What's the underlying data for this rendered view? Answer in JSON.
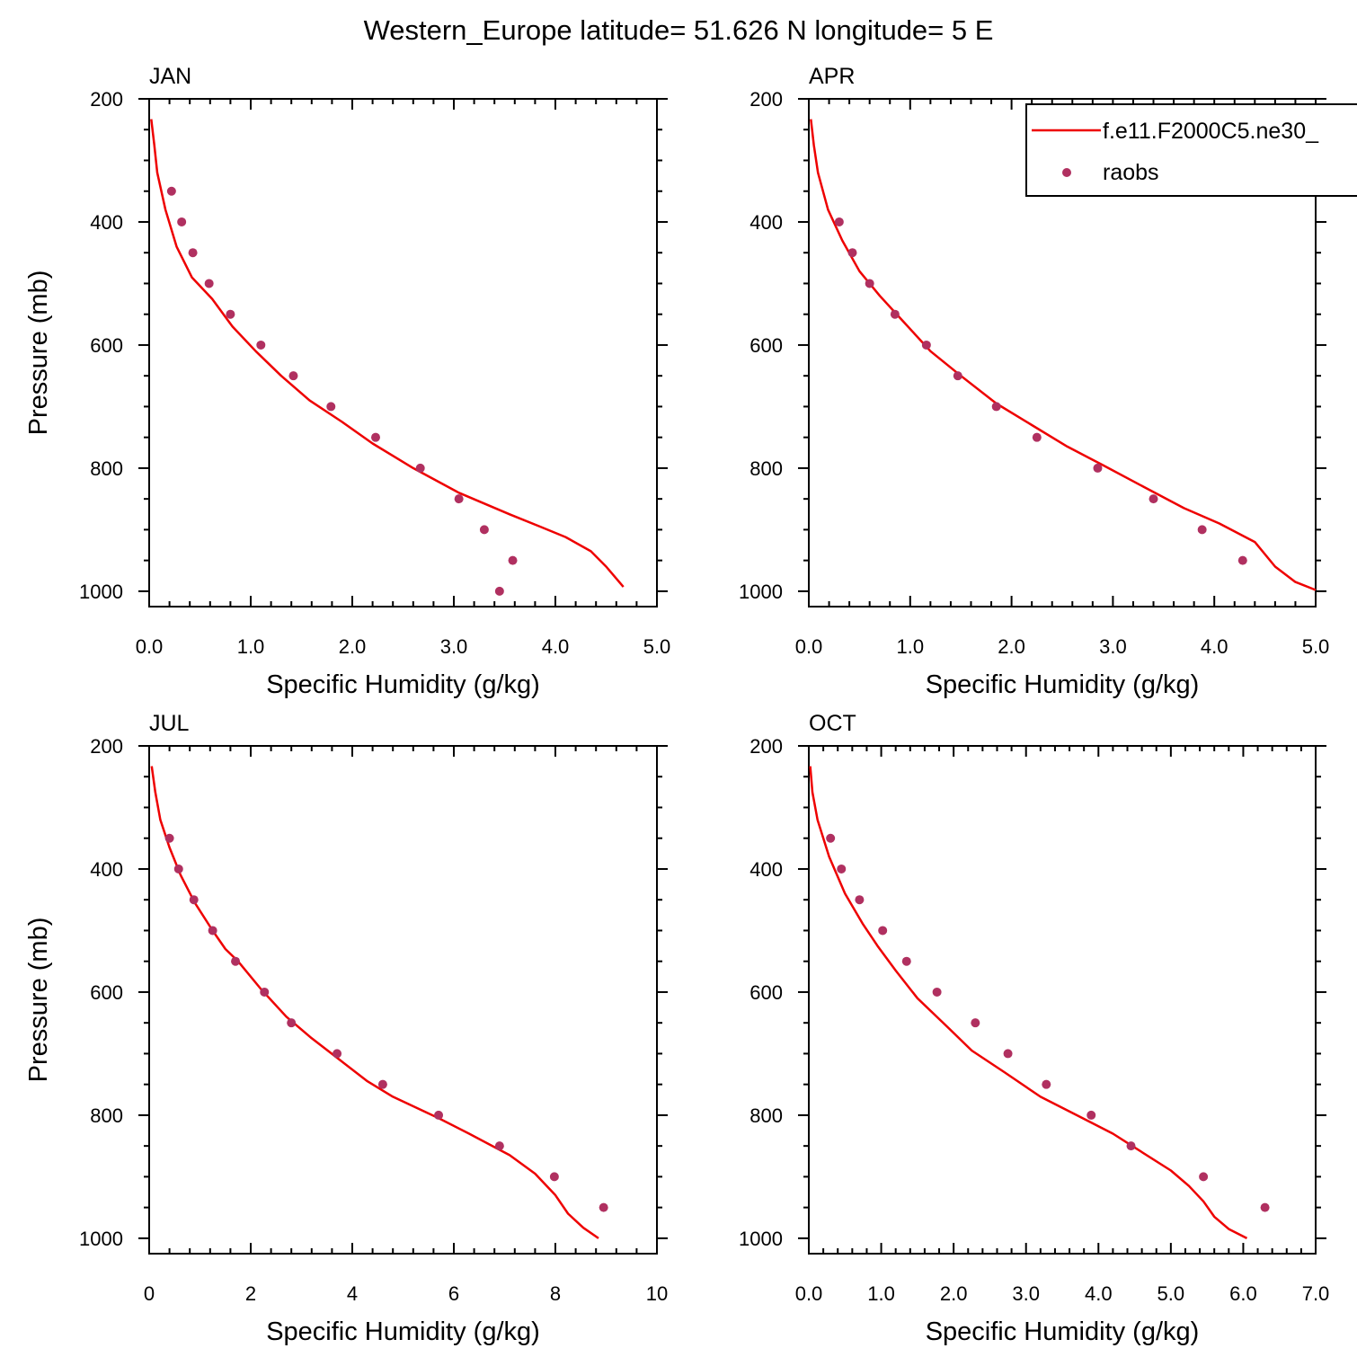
{
  "figure": {
    "title": "Western_Europe  latitude= 51.626 N longitude= 5 E"
  },
  "legend": {
    "model_label": "f.e11.F2000C5.ne30_",
    "obs_label": "raobs",
    "model_color": "#ee0000",
    "obs_color": "#b03060"
  },
  "chart_data": [
    {
      "type": "line",
      "title": "JAN",
      "xlabel": "Specific Humidity (g/kg)",
      "ylabel": "Pressure (mb)",
      "xlim": [
        0,
        5
      ],
      "ylim": [
        200,
        1025
      ],
      "y_inverted": true,
      "x_ticks": [
        "0.0",
        "1.0",
        "2.0",
        "3.0",
        "4.0",
        "5.0"
      ],
      "x_tick_values": [
        0,
        1,
        2,
        3,
        4,
        5
      ],
      "y_ticks": [
        "200",
        "400",
        "600",
        "800",
        "1000"
      ],
      "y_tick_values": [
        200,
        400,
        600,
        800,
        1000
      ],
      "series": [
        {
          "name": "f.e11.F2000C5.ne30_",
          "kind": "line",
          "x": [
            0.02,
            0.05,
            0.08,
            0.16,
            0.27,
            0.42,
            0.62,
            0.82,
            1.05,
            1.3,
            1.58,
            1.9,
            2.2,
            2.6,
            3.05,
            3.55,
            3.85,
            4.1,
            4.35,
            4.5,
            4.67
          ],
          "y": [
            233,
            275,
            320,
            380,
            440,
            490,
            525,
            570,
            610,
            650,
            690,
            725,
            760,
            800,
            840,
            875,
            895,
            912,
            935,
            960,
            993
          ]
        },
        {
          "name": "raobs",
          "kind": "scatter",
          "x": [
            0.22,
            0.32,
            0.43,
            0.59,
            0.8,
            1.1,
            1.42,
            1.79,
            2.23,
            2.67,
            3.05,
            3.3,
            3.58,
            3.45
          ],
          "y": [
            350,
            400,
            450,
            500,
            550,
            600,
            650,
            700,
            750,
            800,
            850,
            900,
            950,
            1000
          ]
        }
      ]
    },
    {
      "type": "line",
      "title": "APR",
      "xlabel": "Specific Humidity (g/kg)",
      "ylabel": "",
      "xlim": [
        0,
        5
      ],
      "ylim": [
        200,
        1025
      ],
      "y_inverted": true,
      "x_ticks": [
        "0.0",
        "1.0",
        "2.0",
        "3.0",
        "4.0",
        "5.0"
      ],
      "x_tick_values": [
        0,
        1,
        2,
        3,
        4,
        5
      ],
      "y_ticks": [
        "200",
        "400",
        "600",
        "800",
        "1000"
      ],
      "y_tick_values": [
        200,
        400,
        600,
        800,
        1000
      ],
      "series": [
        {
          "name": "f.e11.F2000C5.ne30_",
          "kind": "line",
          "x": [
            0.02,
            0.05,
            0.09,
            0.19,
            0.33,
            0.5,
            0.7,
            0.95,
            1.2,
            1.5,
            1.85,
            2.2,
            2.55,
            2.9,
            3.3,
            3.7,
            4.05,
            4.4,
            4.6,
            4.8,
            5.0
          ],
          "y": [
            233,
            275,
            320,
            380,
            430,
            480,
            520,
            565,
            610,
            650,
            695,
            730,
            765,
            795,
            830,
            865,
            890,
            920,
            960,
            985,
            998
          ]
        },
        {
          "name": "raobs",
          "kind": "scatter",
          "x": [
            0.3,
            0.43,
            0.6,
            0.85,
            1.16,
            1.47,
            1.85,
            2.25,
            2.85,
            3.4,
            3.88,
            4.28
          ],
          "y": [
            400,
            450,
            500,
            550,
            600,
            650,
            700,
            750,
            800,
            850,
            900,
            950
          ]
        }
      ]
    },
    {
      "type": "line",
      "title": "JUL",
      "xlabel": "Specific Humidity (g/kg)",
      "ylabel": "Pressure (mb)",
      "xlim": [
        0,
        10
      ],
      "ylim": [
        200,
        1025
      ],
      "y_inverted": true,
      "x_ticks": [
        "0",
        "2",
        "4",
        "6",
        "8",
        "10"
      ],
      "x_tick_values": [
        0,
        2,
        4,
        6,
        8,
        10
      ],
      "y_ticks": [
        "200",
        "400",
        "600",
        "800",
        "1000"
      ],
      "y_tick_values": [
        200,
        400,
        600,
        800,
        1000
      ],
      "series": [
        {
          "name": "f.e11.F2000C5.ne30_",
          "kind": "line",
          "x": [
            0.05,
            0.12,
            0.22,
            0.4,
            0.62,
            0.9,
            1.25,
            1.5,
            1.75,
            2.2,
            2.7,
            3.2,
            3.75,
            4.3,
            4.8,
            5.7,
            6.3,
            7.1,
            7.6,
            8.0,
            8.25,
            8.55,
            8.85
          ],
          "y": [
            233,
            275,
            320,
            365,
            410,
            455,
            500,
            530,
            550,
            595,
            640,
            675,
            710,
            745,
            770,
            805,
            830,
            865,
            895,
            930,
            960,
            983,
            1000
          ]
        },
        {
          "name": "raobs",
          "kind": "scatter",
          "x": [
            0.4,
            0.58,
            0.88,
            1.25,
            1.7,
            2.27,
            2.8,
            3.7,
            4.6,
            5.7,
            6.9,
            7.98,
            8.95
          ],
          "y": [
            350,
            400,
            450,
            500,
            550,
            600,
            650,
            700,
            750,
            800,
            850,
            900,
            950
          ]
        }
      ]
    },
    {
      "type": "line",
      "title": "OCT",
      "xlabel": "Specific Humidity (g/kg)",
      "ylabel": "",
      "xlim": [
        0,
        7
      ],
      "ylim": [
        200,
        1025
      ],
      "y_inverted": true,
      "x_ticks": [
        "0.0",
        "1.0",
        "2.0",
        "3.0",
        "4.0",
        "5.0",
        "6.0",
        "7.0"
      ],
      "x_tick_values": [
        0,
        1,
        2,
        3,
        4,
        5,
        6,
        7
      ],
      "y_ticks": [
        "200",
        "400",
        "600",
        "800",
        "1000"
      ],
      "y_tick_values": [
        200,
        400,
        600,
        800,
        1000
      ],
      "series": [
        {
          "name": "f.e11.F2000C5.ne30_",
          "kind": "line",
          "x": [
            0.02,
            0.05,
            0.12,
            0.28,
            0.5,
            0.75,
            0.95,
            1.2,
            1.5,
            1.9,
            2.25,
            2.7,
            3.2,
            3.7,
            4.2,
            4.6,
            5.0,
            5.25,
            5.45,
            5.6,
            5.8,
            6.05
          ],
          "y": [
            233,
            275,
            320,
            380,
            440,
            490,
            525,
            565,
            610,
            655,
            695,
            730,
            770,
            800,
            830,
            860,
            890,
            915,
            940,
            965,
            985,
            1000
          ]
        },
        {
          "name": "raobs",
          "kind": "scatter",
          "x": [
            0.3,
            0.45,
            0.7,
            1.02,
            1.35,
            1.77,
            2.3,
            2.75,
            3.28,
            3.9,
            4.45,
            5.45,
            6.3
          ],
          "y": [
            350,
            400,
            450,
            500,
            550,
            600,
            650,
            700,
            750,
            800,
            850,
            900,
            950
          ]
        }
      ]
    }
  ]
}
